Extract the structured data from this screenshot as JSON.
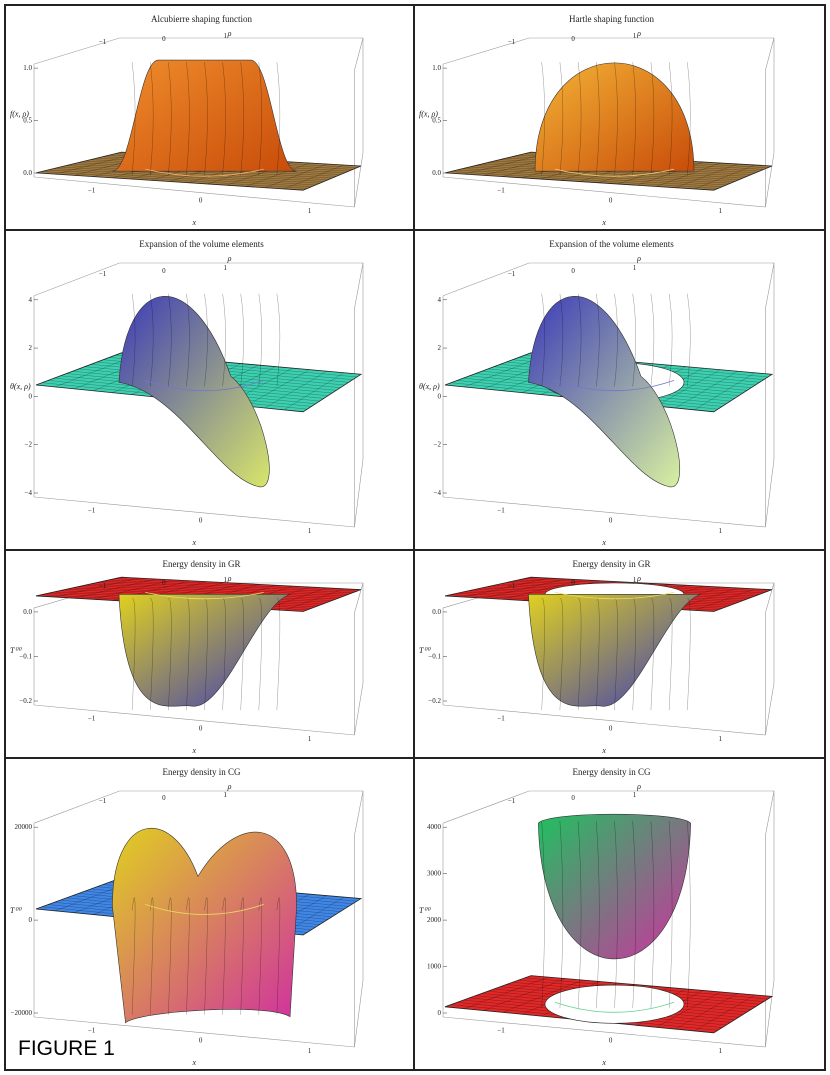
{
  "figure_label": "FIGURE 1",
  "colors": {
    "frame": "#222222",
    "ground_brown": "#a07a40",
    "ground_teal": "#3ccfb0",
    "ground_red": "#e02828",
    "ground_blue": "#3f86e6"
  },
  "chart_data": [
    {
      "type": "surface3d",
      "title": "Alcubierre shaping function",
      "xlabel": "x",
      "ylabel": "ρ",
      "zlabel": "f(x, ρ)",
      "x_ticks": [
        "−1",
        "0",
        "1"
      ],
      "y_ticks": [
        "−1",
        "0",
        "1"
      ],
      "z_ticks": [
        "1.0",
        "0.5",
        "0.0"
      ],
      "z_range": [
        0,
        1
      ],
      "shape": "mesa",
      "has_hole": false,
      "ground_color": "#a07a40",
      "surface_colors": [
        "#c84c0a",
        "#f08d2c"
      ]
    },
    {
      "type": "surface3d",
      "title": "Hartle shaping function",
      "xlabel": "x",
      "ylabel": "ρ",
      "zlabel": "f(x, ρ)",
      "x_ticks": [
        "−1",
        "0",
        "1"
      ],
      "y_ticks": [
        "−1",
        "0",
        "1"
      ],
      "z_ticks": [
        "1.0",
        "0.5",
        "0.0"
      ],
      "z_range": [
        0,
        1
      ],
      "shape": "dome",
      "has_hole": false,
      "ground_color": "#a07a40",
      "surface_colors": [
        "#c84c0a",
        "#f4b436"
      ]
    },
    {
      "type": "surface3d",
      "title": "Expansion of the volume elements",
      "xlabel": "x",
      "ylabel": "ρ",
      "zlabel": "θ(x, ρ)",
      "x_ticks": [
        "−1",
        "0",
        "1"
      ],
      "y_ticks": [
        "−1",
        "0",
        "1"
      ],
      "z_ticks": [
        "4",
        "2",
        "0",
        "−2",
        "−4"
      ],
      "z_range": [
        -4,
        4
      ],
      "shape": "dipole",
      "has_hole": false,
      "ground_color": "#3ccfb0",
      "surface_colors": [
        "#d8e66a",
        "#3a3ab8"
      ]
    },
    {
      "type": "surface3d",
      "title": "Expansion of the volume elements",
      "xlabel": "x",
      "ylabel": "ρ",
      "zlabel": "θ(x, ρ)",
      "x_ticks": [
        "−1",
        "0",
        "1"
      ],
      "y_ticks": [
        "−1",
        "0",
        "1"
      ],
      "z_ticks": [
        "4",
        "2",
        "0",
        "−2",
        "−4"
      ],
      "z_range": [
        -4,
        4
      ],
      "shape": "dipole",
      "has_hole": true,
      "ground_color": "#3ccfb0",
      "surface_colors": [
        "#d8f0a0",
        "#3a3ab8"
      ]
    },
    {
      "type": "surface3d",
      "title": "Energy density in GR",
      "xlabel": "x",
      "ylabel": "ρ",
      "zlabel": "T⁰⁰",
      "x_ticks": [
        "−1",
        "0",
        "1"
      ],
      "y_ticks": [
        "−1",
        "0",
        "1"
      ],
      "z_ticks": [
        "0.0",
        "−0.1",
        "−0.2"
      ],
      "z_range": [
        -0.2,
        0
      ],
      "shape": "well",
      "has_hole": false,
      "ground_color": "#e02828",
      "surface_colors": [
        "#3a3ab8",
        "#e0d020"
      ]
    },
    {
      "type": "surface3d",
      "title": "Energy density in GR",
      "xlabel": "x",
      "ylabel": "ρ",
      "zlabel": "T⁰⁰",
      "x_ticks": [
        "−1",
        "0",
        "1"
      ],
      "y_ticks": [
        "−1",
        "0",
        "1"
      ],
      "z_ticks": [
        "0.0",
        "−0.1",
        "−0.2"
      ],
      "z_range": [
        -0.2,
        0
      ],
      "shape": "well",
      "has_hole": true,
      "ground_color": "#e02828",
      "surface_colors": [
        "#3a3ab8",
        "#e0d020"
      ]
    },
    {
      "type": "surface3d",
      "title": "Energy density in CG",
      "xlabel": "x",
      "ylabel": "ρ",
      "zlabel": "T⁰⁰",
      "x_ticks": [
        "−1",
        "0",
        "1"
      ],
      "y_ticks": [
        "−1",
        "0",
        "1"
      ],
      "z_ticks": [
        "20000",
        "0",
        "−20000"
      ],
      "z_range": [
        -20000,
        20000
      ],
      "shape": "wave",
      "has_hole": false,
      "ground_color": "#3f86e6",
      "surface_colors": [
        "#d030a0",
        "#e0d020"
      ]
    },
    {
      "type": "surface3d",
      "title": "Energy density in CG",
      "xlabel": "x",
      "ylabel": "ρ",
      "zlabel": "T⁰⁰",
      "x_ticks": [
        "−1",
        "0",
        "1"
      ],
      "y_ticks": [
        "−1",
        "0",
        "1"
      ],
      "z_ticks": [
        "4000",
        "3000",
        "2000",
        "1000",
        "0"
      ],
      "z_range": [
        0,
        4000
      ],
      "shape": "cup",
      "has_hole": true,
      "ground_color": "#e02828",
      "surface_colors": [
        "#d030a0",
        "#20c060"
      ]
    }
  ]
}
